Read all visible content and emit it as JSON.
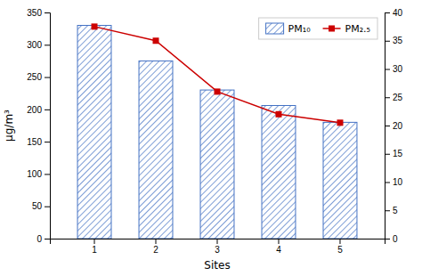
{
  "chart_data": {
    "type": "bar",
    "xlabel": "Sites",
    "ylabel": "μg/m³",
    "categories": [
      "1",
      "2",
      "3",
      "4",
      "5"
    ],
    "series": [
      {
        "name": "PM₁₀",
        "type": "bar",
        "color": "#4472C4",
        "values": [
          330,
          275,
          230,
          206,
          180
        ]
      },
      {
        "name": "PM₂.₅",
        "type": "line",
        "color": "#CC0000",
        "marker": "square",
        "axis": "y2",
        "values": [
          37.5,
          35,
          26,
          22,
          20.5
        ]
      }
    ],
    "ylim": [
      0,
      350
    ],
    "yticks": [
      0,
      50,
      100,
      150,
      200,
      250,
      300,
      350
    ],
    "y2lim": [
      0,
      40
    ],
    "y2ticks": [
      0,
      5,
      10,
      15,
      20,
      25,
      30,
      35,
      40
    ],
    "legend": "upper right",
    "grid": false
  }
}
